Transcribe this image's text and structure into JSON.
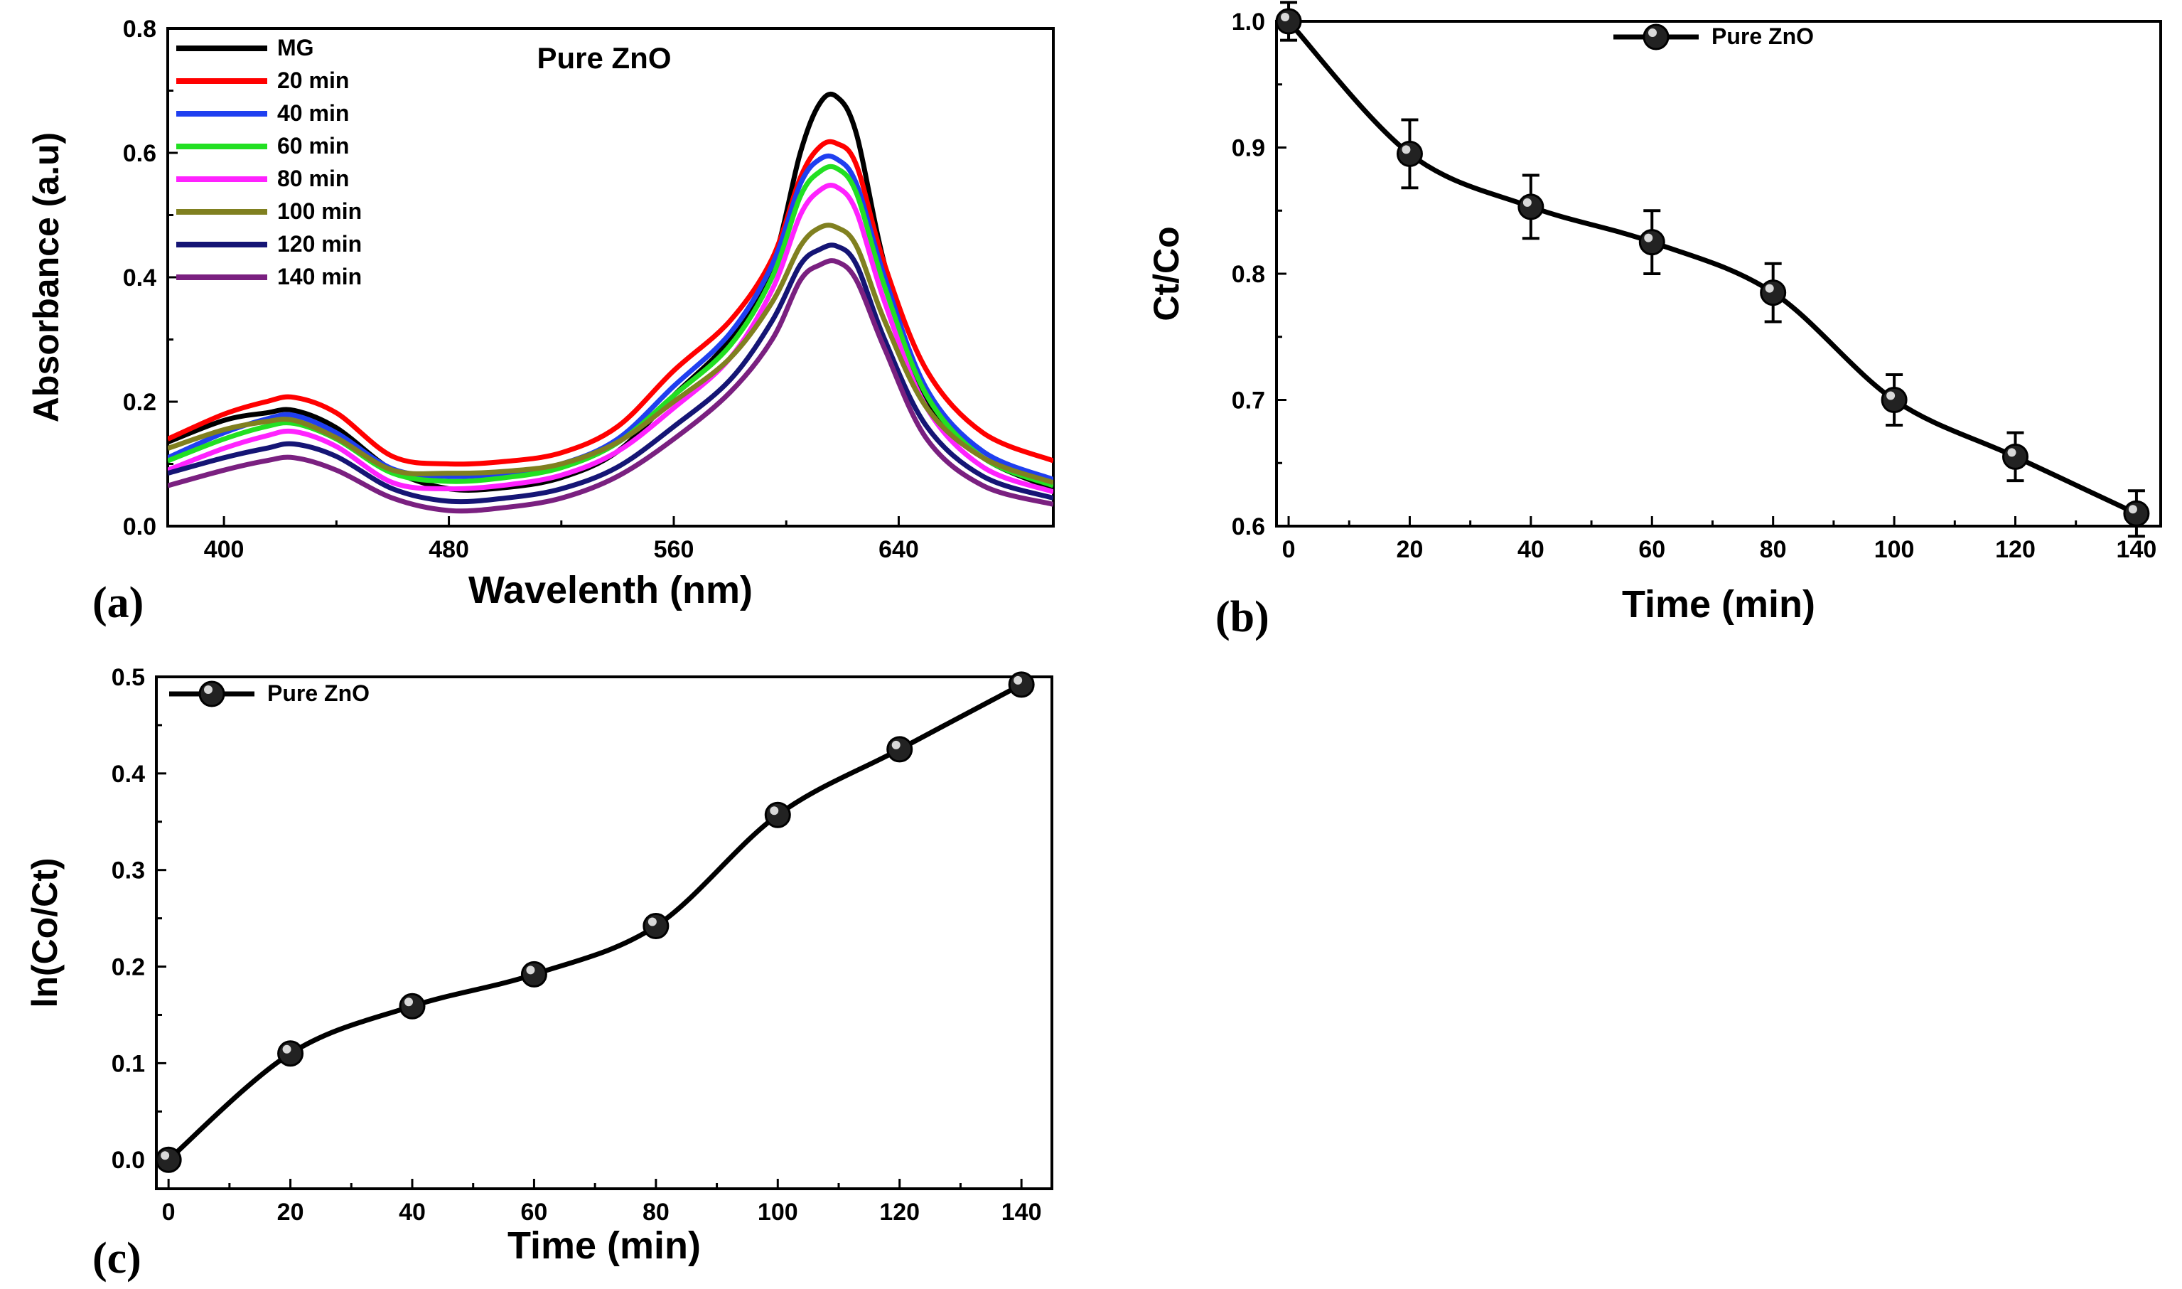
{
  "chart_data": [
    {
      "panel_label": "(a)",
      "type": "line",
      "title": "Pure ZnO",
      "xlabel": "Wavelenth (nm)",
      "ylabel": "Absorbance (a.u)",
      "xlim": [
        380,
        695
      ],
      "ylim": [
        0.0,
        0.8
      ],
      "xticks": [
        400,
        480,
        560,
        640
      ],
      "yticks": [
        0.0,
        0.2,
        0.4,
        0.6,
        0.8
      ],
      "x": [
        380,
        400,
        415,
        425,
        440,
        460,
        480,
        500,
        520,
        540,
        560,
        580,
        595,
        605,
        612,
        618,
        625,
        635,
        650,
        670,
        695
      ],
      "series": [
        {
          "name": "MG",
          "color": "#000000",
          "values": [
            0.135,
            0.17,
            0.182,
            0.186,
            0.158,
            0.09,
            0.06,
            0.062,
            0.078,
            0.12,
            0.21,
            0.3,
            0.42,
            0.6,
            0.68,
            0.69,
            0.63,
            0.42,
            0.2,
            0.11,
            0.06
          ]
        },
        {
          "name": "20 min",
          "color": "#ff0000",
          "values": [
            0.14,
            0.18,
            0.2,
            0.207,
            0.182,
            0.112,
            0.1,
            0.104,
            0.118,
            0.16,
            0.25,
            0.33,
            0.43,
            0.56,
            0.61,
            0.615,
            0.58,
            0.42,
            0.25,
            0.15,
            0.105
          ]
        },
        {
          "name": "40 min",
          "color": "#1f3ff0",
          "values": [
            0.11,
            0.15,
            0.172,
            0.178,
            0.15,
            0.092,
            0.08,
            0.085,
            0.1,
            0.14,
            0.225,
            0.31,
            0.42,
            0.55,
            0.59,
            0.59,
            0.55,
            0.4,
            0.22,
            0.12,
            0.075
          ]
        },
        {
          "name": "60 min",
          "color": "#22e022",
          "values": [
            0.105,
            0.14,
            0.16,
            0.165,
            0.14,
            0.085,
            0.072,
            0.078,
            0.094,
            0.134,
            0.21,
            0.29,
            0.4,
            0.53,
            0.57,
            0.575,
            0.535,
            0.385,
            0.21,
            0.11,
            0.065
          ]
        },
        {
          "name": "80 min",
          "color": "#ff22ff",
          "values": [
            0.09,
            0.125,
            0.145,
            0.152,
            0.128,
            0.07,
            0.06,
            0.066,
            0.082,
            0.12,
            0.19,
            0.27,
            0.38,
            0.5,
            0.54,
            0.545,
            0.505,
            0.36,
            0.19,
            0.095,
            0.055
          ]
        },
        {
          "name": "100 min",
          "color": "#808020",
          "values": [
            0.125,
            0.155,
            0.168,
            0.17,
            0.142,
            0.09,
            0.085,
            0.088,
            0.1,
            0.135,
            0.2,
            0.27,
            0.36,
            0.45,
            0.48,
            0.48,
            0.45,
            0.33,
            0.19,
            0.11,
            0.07
          ]
        },
        {
          "name": "120 min",
          "color": "#151575",
          "values": [
            0.085,
            0.11,
            0.125,
            0.132,
            0.112,
            0.06,
            0.04,
            0.045,
            0.06,
            0.095,
            0.16,
            0.235,
            0.33,
            0.42,
            0.445,
            0.45,
            0.42,
            0.3,
            0.16,
            0.08,
            0.045
          ]
        },
        {
          "name": "140 min",
          "color": "#7a2080",
          "values": [
            0.065,
            0.09,
            0.105,
            0.11,
            0.09,
            0.045,
            0.025,
            0.03,
            0.045,
            0.08,
            0.14,
            0.215,
            0.3,
            0.395,
            0.42,
            0.425,
            0.395,
            0.285,
            0.14,
            0.065,
            0.035
          ]
        }
      ],
      "legend": "top-left"
    },
    {
      "panel_label": "(b)",
      "type": "line",
      "xlabel": "Time (min)",
      "ylabel": "Ct/Co",
      "xlim": [
        -2,
        144
      ],
      "ylim": [
        0.6,
        1.0
      ],
      "xticks": [
        0,
        20,
        40,
        60,
        80,
        100,
        120,
        140
      ],
      "yticks": [
        0.6,
        0.7,
        0.8,
        0.9,
        1.0
      ],
      "series": [
        {
          "name": "Pure ZnO",
          "color": "#000000",
          "x": [
            0,
            20,
            40,
            60,
            80,
            100,
            120,
            140
          ],
          "values": [
            1.0,
            0.895,
            0.853,
            0.825,
            0.785,
            0.7,
            0.655,
            0.61
          ],
          "errors": [
            0.015,
            0.027,
            0.025,
            0.025,
            0.023,
            0.02,
            0.019,
            0.018
          ]
        }
      ],
      "legend": "top-center"
    },
    {
      "panel_label": "(c)",
      "type": "line",
      "xlabel": "Time (min)",
      "ylabel": "ln(Co/Ct)",
      "xlim": [
        -2,
        145
      ],
      "ylim": [
        -0.03,
        0.5
      ],
      "xticks": [
        0,
        20,
        40,
        60,
        80,
        100,
        120,
        140
      ],
      "yticks": [
        0.0,
        0.1,
        0.2,
        0.3,
        0.4,
        0.5
      ],
      "series": [
        {
          "name": "Pure ZnO",
          "color": "#000000",
          "x": [
            0,
            20,
            40,
            60,
            80,
            100,
            120,
            140
          ],
          "values": [
            0.0,
            0.11,
            0.159,
            0.192,
            0.242,
            0.357,
            0.425,
            0.492
          ]
        }
      ],
      "legend": "top-left"
    }
  ]
}
